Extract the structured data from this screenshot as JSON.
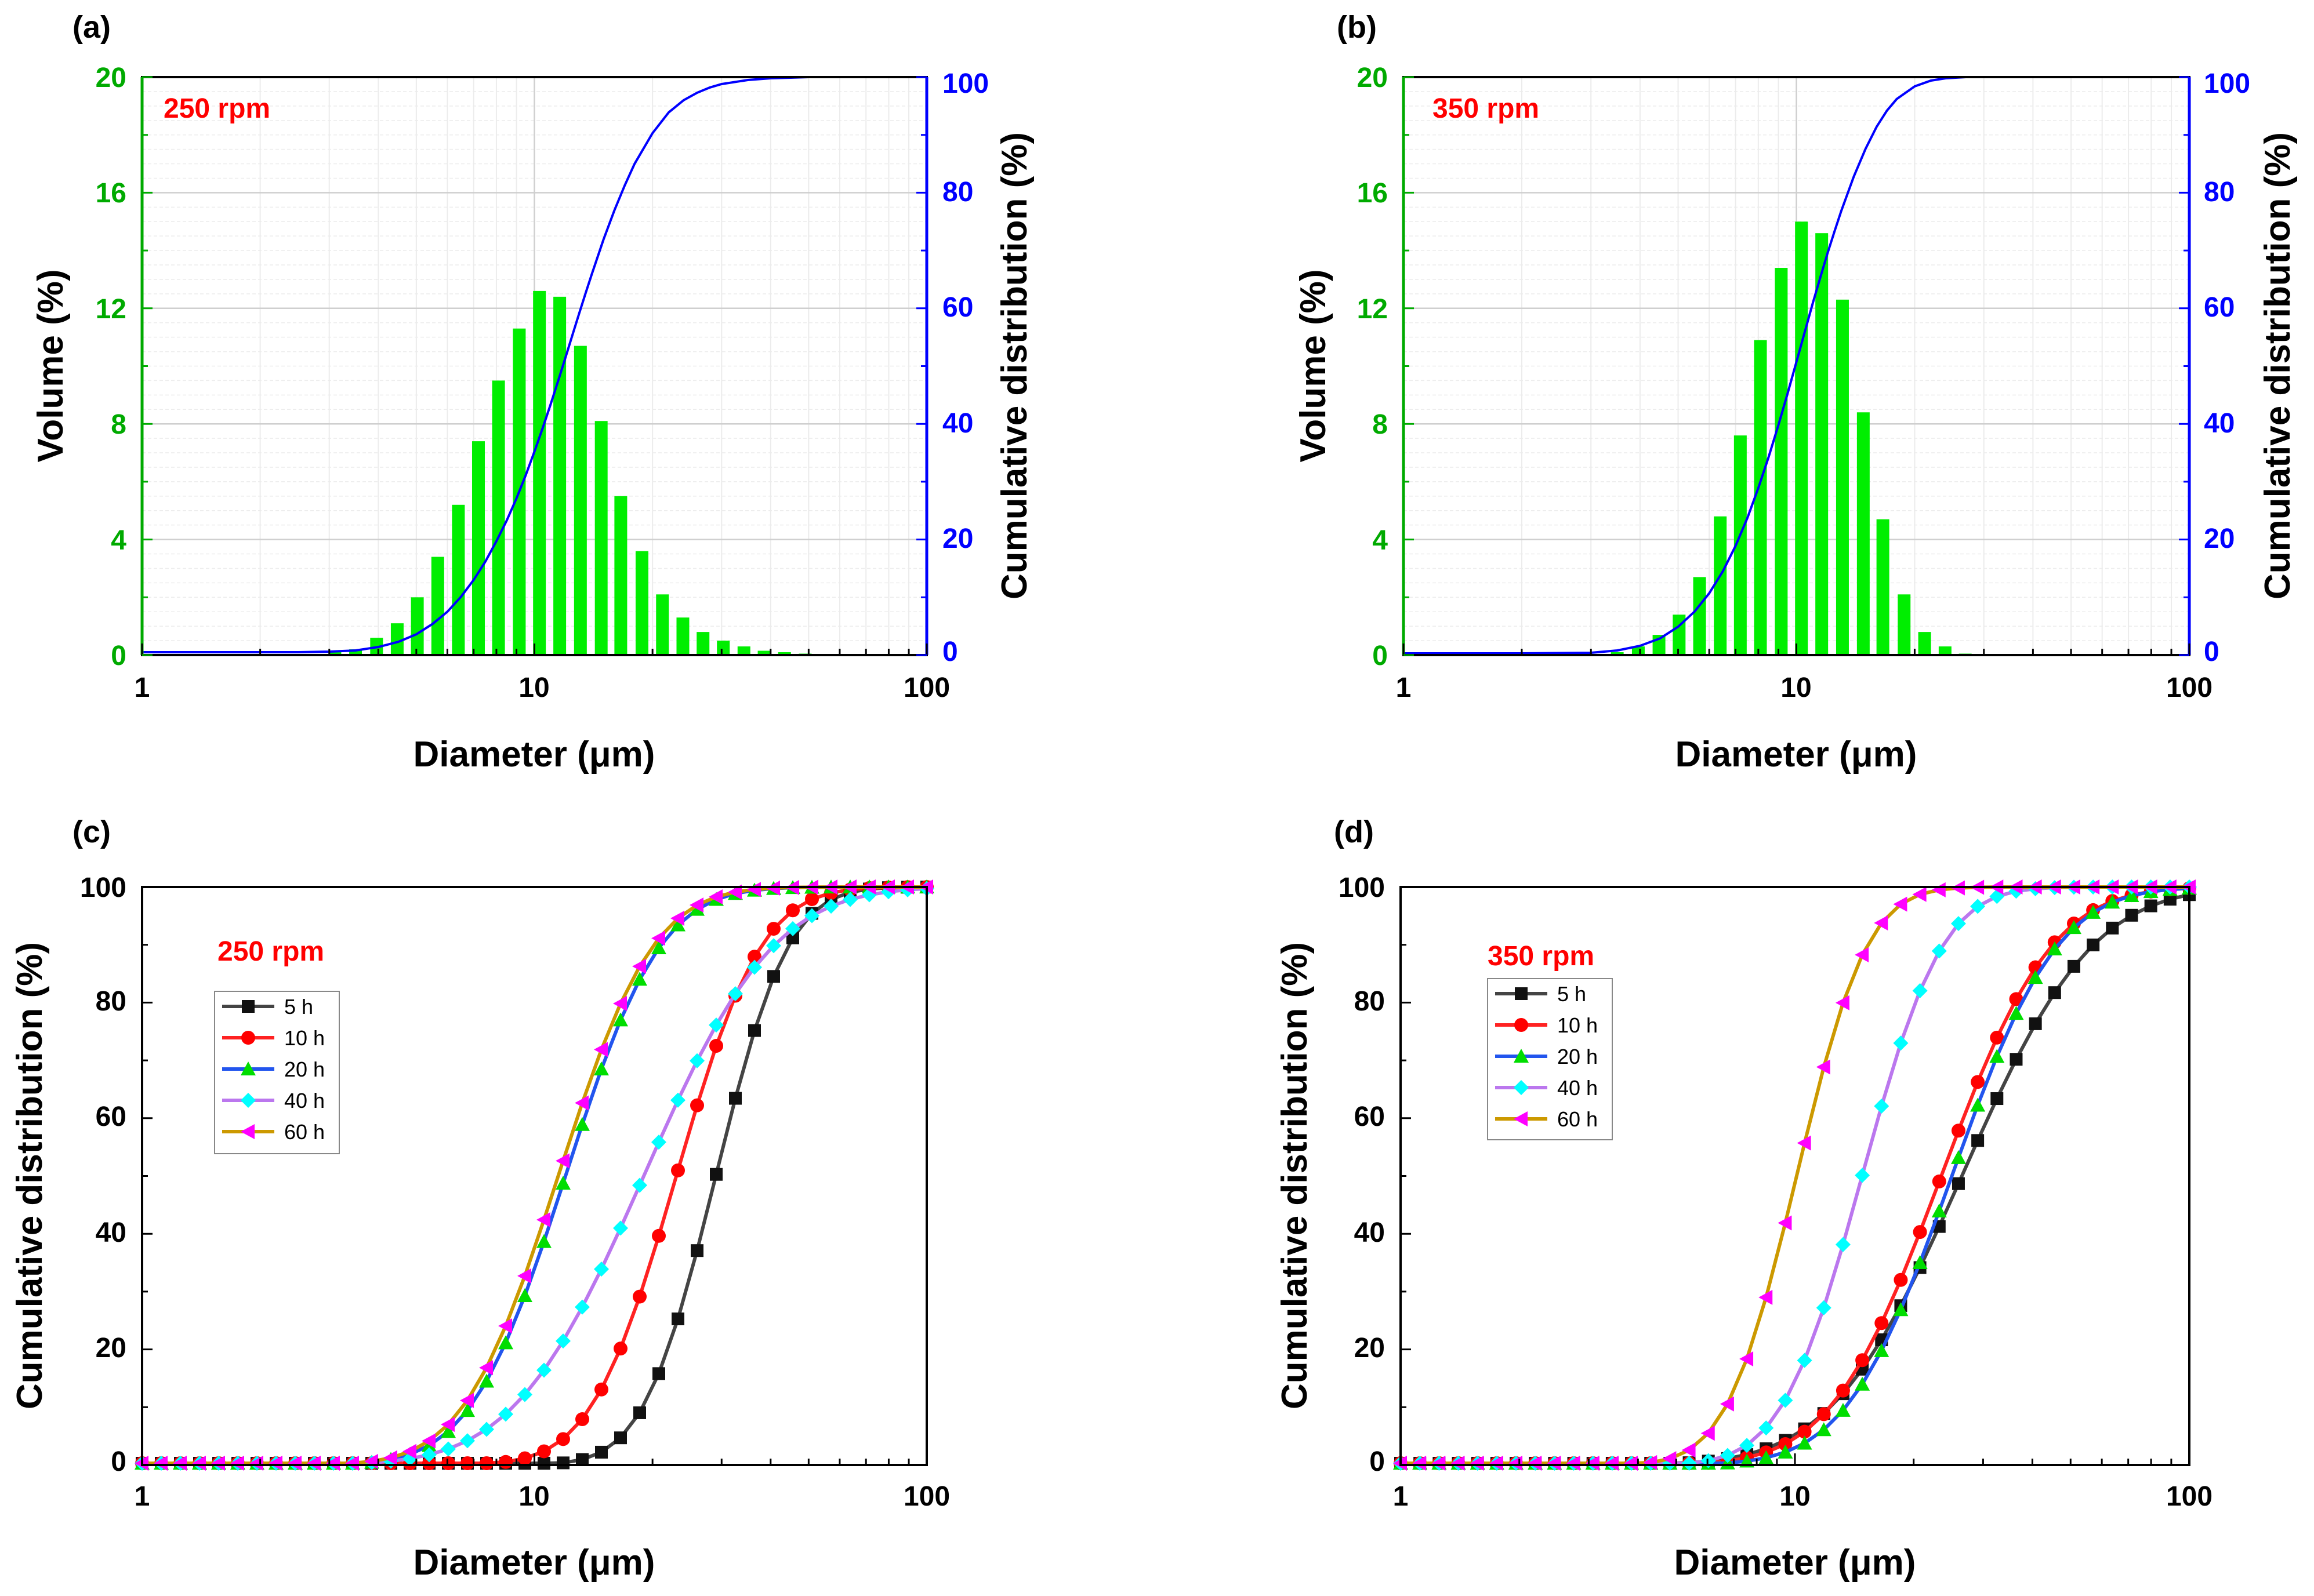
{
  "figure": {
    "colors": {
      "bar": "#00ee00",
      "left_axis": "#00aa00",
      "cumulative": "#0000ff",
      "rpm_label": "#ff0000",
      "axis": "#000000",
      "grid_major": "#cfcfcf",
      "grid_minor": "#ececec"
    }
  },
  "chart_data": [
    {
      "panel": "(a)",
      "type": "bar",
      "annotation": "250 rpm",
      "xlabel": "Diameter (μm)",
      "ylabel": "Volume (%)",
      "y2label": "Cumulative distribution (%)",
      "xscale": "log",
      "xlim": [
        1,
        100
      ],
      "ylim": [
        0,
        20
      ],
      "y2lim": [
        0,
        100
      ],
      "xticks": [
        "1",
        "10",
        "100"
      ],
      "yticks": [
        "0",
        "4",
        "8",
        "12",
        "16",
        "20"
      ],
      "y2ticks": [
        "0",
        "20",
        "40",
        "60",
        "80",
        "100"
      ],
      "grid": true,
      "bars": {
        "x": [
          3.1,
          3.5,
          3.96,
          4.47,
          5.03,
          5.67,
          6.4,
          7.2,
          8.1,
          9.15,
          10.3,
          11.6,
          13.1,
          14.8,
          16.6,
          18.8,
          21.2,
          23.9,
          26.9,
          30.3,
          34.2,
          38.5,
          43.4,
          49.0,
          55.2
        ],
        "values": [
          0.1,
          0.2,
          0.6,
          1.1,
          2.0,
          3.4,
          5.2,
          7.4,
          9.5,
          11.3,
          12.6,
          12.4,
          10.7,
          8.1,
          5.5,
          3.6,
          2.1,
          1.3,
          0.8,
          0.5,
          0.3,
          0.15,
          0.1,
          0.05,
          0.02
        ]
      },
      "cumulative": {
        "x": [
          1,
          2,
          2.5,
          3,
          3.5,
          4,
          4.5,
          5,
          5.5,
          6,
          6.5,
          7,
          7.5,
          8,
          8.5,
          9,
          9.5,
          10,
          10.5,
          11,
          11.5,
          12,
          12.5,
          13,
          13.5,
          14,
          15,
          16,
          17,
          18,
          20,
          22,
          24,
          26,
          28,
          30,
          35,
          40,
          45,
          50,
          60,
          70,
          100
        ],
        "values": [
          0.5,
          0.5,
          0.5,
          0.6,
          0.8,
          1.4,
          2.3,
          3.6,
          5.4,
          7.5,
          10.1,
          13.0,
          16.2,
          19.7,
          23.3,
          27.1,
          31.1,
          35.2,
          39.3,
          43.4,
          47.5,
          51.5,
          55.4,
          59.1,
          62.6,
          65.9,
          71.9,
          77.0,
          81.3,
          85.0,
          90.3,
          93.9,
          96.0,
          97.3,
          98.2,
          98.8,
          99.5,
          99.8,
          99.9,
          100,
          100,
          100,
          100
        ]
      }
    },
    {
      "panel": "(b)",
      "type": "bar",
      "annotation": "350 rpm",
      "xlabel": "Diameter (μm)",
      "ylabel": "Volume (%)",
      "y2label": "Cumulative distribution (%)",
      "xscale": "log",
      "xlim": [
        1,
        100
      ],
      "ylim": [
        0,
        20
      ],
      "y2lim": [
        0,
        100
      ],
      "xticks": [
        "1",
        "10",
        "100"
      ],
      "yticks": [
        "0",
        "4",
        "8",
        "12",
        "16",
        "20"
      ],
      "y2ticks": [
        "0",
        "20",
        "40",
        "60",
        "80",
        "100"
      ],
      "grid": true,
      "bars": {
        "x": [
          3.5,
          3.96,
          4.47,
          5.03,
          5.67,
          6.4,
          7.2,
          8.1,
          9.15,
          10.3,
          11.6,
          13.1,
          14.8,
          16.6,
          18.8,
          21.2,
          23.9,
          26.9
        ],
        "values": [
          0.1,
          0.3,
          0.7,
          1.4,
          2.7,
          4.8,
          7.6,
          10.9,
          13.4,
          15.0,
          14.6,
          12.3,
          8.4,
          4.7,
          2.1,
          0.8,
          0.3,
          0.05
        ]
      },
      "cumulative": {
        "x": [
          1,
          2,
          3,
          3.5,
          4,
          4.5,
          5,
          5.5,
          6,
          6.5,
          7,
          7.5,
          8,
          8.5,
          9,
          9.5,
          10,
          10.5,
          11,
          11.5,
          12,
          12.5,
          13,
          14,
          15,
          16,
          17,
          18,
          20,
          22,
          24,
          27,
          30,
          35,
          40,
          50,
          100
        ],
        "values": [
          0.3,
          0.3,
          0.4,
          0.8,
          1.6,
          2.9,
          4.9,
          7.5,
          10.7,
          14.5,
          18.9,
          23.7,
          28.9,
          34.3,
          39.8,
          45.3,
          50.7,
          55.9,
          60.8,
          65.3,
          69.5,
          73.3,
          76.8,
          82.8,
          87.6,
          91.4,
          94.2,
          96.2,
          98.4,
          99.4,
          99.8,
          100,
          100,
          100,
          100,
          100,
          100
        ]
      }
    },
    {
      "panel": "(c)",
      "type": "line",
      "annotation": "250 rpm",
      "xlabel": "Diameter (μm)",
      "ylabel": "Cumulative distribution (%)",
      "xscale": "log",
      "xlim": [
        1,
        100
      ],
      "ylim": [
        0,
        100
      ],
      "xticks": [
        "1",
        "10",
        "100"
      ],
      "yticks": [
        "0",
        "20",
        "40",
        "60",
        "80",
        "100"
      ],
      "grid": false,
      "legend_position": "upper-left",
      "series": [
        {
          "name": "5 h",
          "marker": "square",
          "line_color": "#444444",
          "marker_color": "#111111",
          "x50": 29.0,
          "width": 0.145
        },
        {
          "name": "10 h",
          "marker": "circle",
          "line_color": "#ff2222",
          "marker_color": "#ff0000",
          "x50": 23.0,
          "width": 0.17
        },
        {
          "name": "20 h",
          "marker": "triangle-up",
          "line_color": "#2255ee",
          "marker_color": "#00dd00",
          "x50": 12.0,
          "width": 0.19
        },
        {
          "name": "40 h",
          "marker": "diamond",
          "line_color": "#bb77ee",
          "marker_color": "#00ffff",
          "x50": 19.0,
          "width": 0.26
        },
        {
          "name": "60 h",
          "marker": "triangle-left",
          "line_color": "#cc9900",
          "marker_color": "#ff00ff",
          "x50": 11.5,
          "width": 0.19
        }
      ]
    },
    {
      "panel": "(d)",
      "type": "line",
      "annotation": "350 rpm",
      "xlabel": "Diameter (μm)",
      "ylabel": "Cumulative distribution (%)",
      "xscale": "log",
      "xlim": [
        1,
        100
      ],
      "ylim": [
        0,
        100
      ],
      "xticks": [
        "1",
        "10",
        "100"
      ],
      "yticks": [
        "0",
        "20",
        "40",
        "60",
        "80",
        "100"
      ],
      "grid": false,
      "legend_position": "upper-left",
      "series": [
        {
          "name": "5 h",
          "marker": "square",
          "line_color": "#444444",
          "marker_color": "#111111",
          "x50": 26.5,
          "width": 0.26
        },
        {
          "name": "10 h",
          "marker": "circle",
          "line_color": "#ff2222",
          "marker_color": "#ff0000",
          "x50": 23.5,
          "width": 0.22
        },
        {
          "name": "20 h",
          "marker": "triangle-up",
          "line_color": "#2255ee",
          "marker_color": "#00dd00",
          "x50": 25.0,
          "width": 0.21
        },
        {
          "name": "40 h",
          "marker": "diamond",
          "line_color": "#bb77ee",
          "marker_color": "#00ffff",
          "x50": 14.8,
          "width": 0.16
        },
        {
          "name": "60 h",
          "marker": "triangle-left",
          "line_color": "#cc9900",
          "marker_color": "#ff00ff",
          "x50": 10.1,
          "width": 0.14
        }
      ]
    }
  ]
}
